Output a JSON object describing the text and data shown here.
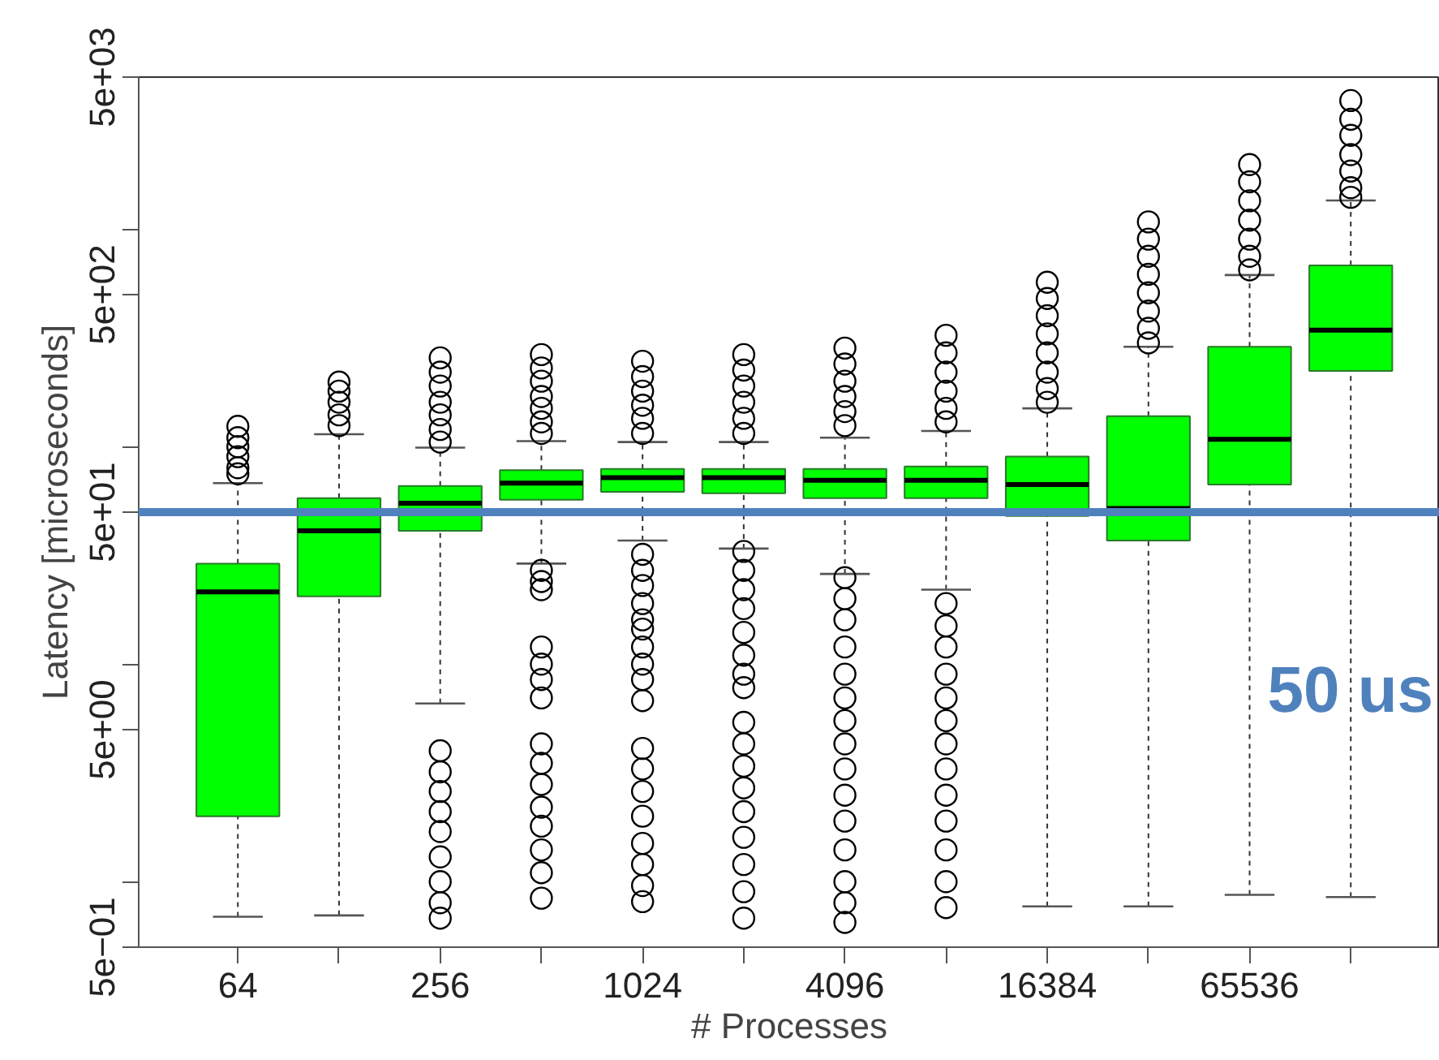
{
  "chart_data": {
    "type": "box",
    "xlabel": "# Processes",
    "ylabel": "Latency [microseconds]",
    "categories": [
      "64",
      null,
      "256",
      null,
      "1024",
      null,
      "4096",
      null,
      "16384",
      null,
      "65536",
      null
    ],
    "color": "#00ff00",
    "boxes": [
      {
        "low": 0.69,
        "q1": 2.0,
        "median": 21.5,
        "q3": 29,
        "high": 68,
        "outliers": [
          124,
          110,
          100,
          90,
          80,
          75
        ]
      },
      {
        "low": 0.7,
        "q1": 20.5,
        "median": 41,
        "q3": 58,
        "high": 114,
        "outliers": [
          198,
          180,
          160,
          140,
          125
        ]
      },
      {
        "low": 6.6,
        "q1": 41,
        "median": 55,
        "q3": 66,
        "high": 99,
        "outliers": [
          256,
          220,
          190,
          160,
          140,
          120,
          105,
          4.0,
          3.2,
          2.6,
          2.1,
          1.7,
          1.3,
          1.0,
          0.8,
          0.68
        ]
      },
      {
        "low": 29,
        "q1": 57,
        "median": 68,
        "q3": 78,
        "high": 106,
        "outliers": [
          265,
          230,
          200,
          170,
          150,
          130,
          115,
          27,
          24,
          22,
          12,
          10,
          8.5,
          7,
          4.3,
          3.5,
          2.8,
          2.2,
          1.8,
          1.4,
          1.1,
          0.84
        ]
      },
      {
        "low": 37,
        "q1": 62,
        "median": 72,
        "q3": 79,
        "high": 105,
        "outliers": [
          247,
          210,
          180,
          155,
          135,
          115,
          32,
          27,
          23,
          19,
          16,
          14.5,
          12,
          10,
          8.5,
          6.8,
          4.1,
          3.3,
          2.6,
          2.0,
          1.5,
          1.2,
          0.96,
          0.81
        ]
      },
      {
        "low": 34,
        "q1": 61,
        "median": 72,
        "q3": 79,
        "high": 105,
        "outliers": [
          265,
          225,
          190,
          160,
          135,
          115,
          33,
          27,
          22,
          18,
          14,
          11,
          9,
          7.8,
          5.4,
          4.3,
          3.4,
          2.7,
          2.1,
          1.6,
          1.2,
          0.9,
          0.68
        ]
      },
      {
        "low": 26,
        "q1": 58,
        "median": 70,
        "q3": 79,
        "high": 110,
        "outliers": [
          284,
          240,
          200,
          170,
          145,
          125,
          25,
          20,
          16,
          12,
          9,
          7,
          5.5,
          4.3,
          3.3,
          2.5,
          1.9,
          1.4,
          1.0,
          0.8,
          0.65
        ]
      },
      {
        "low": 22,
        "q1": 58,
        "median": 70,
        "q3": 81,
        "high": 118,
        "outliers": [
          325,
          270,
          220,
          180,
          150,
          130,
          19,
          15,
          12,
          9,
          7,
          5.5,
          4.3,
          3.3,
          2.5,
          1.9,
          1.4,
          1.0,
          0.76
        ]
      },
      {
        "low": 0.77,
        "q1": 48,
        "median": 67,
        "q3": 90,
        "high": 150,
        "outliers": [
          570,
          480,
          400,
          330,
          270,
          220,
          185,
          160
        ]
      },
      {
        "low": 0.77,
        "q1": 37,
        "median": 52,
        "q3": 138,
        "high": 288,
        "outliers": [
          1080,
          900,
          750,
          620,
          510,
          420,
          350,
          300
        ]
      },
      {
        "low": 0.87,
        "q1": 67,
        "median": 108,
        "q3": 288,
        "high": 615,
        "outliers": [
          1980,
          1650,
          1350,
          1100,
          900,
          750,
          650
        ]
      },
      {
        "low": 0.85,
        "q1": 223,
        "median": 343,
        "q3": 681,
        "high": 1355,
        "outliers": [
          3900,
          3200,
          2700,
          2200,
          1850,
          1550,
          1400
        ]
      }
    ],
    "log": true,
    "ylim": [
      0.5,
      5000
    ],
    "yticks": [
      {
        "value": 0.5,
        "label": "5e−01"
      },
      {
        "value": 1,
        "label": null
      },
      {
        "value": 5,
        "label": "5e+00"
      },
      {
        "value": 10,
        "label": null
      },
      {
        "value": 50,
        "label": "5e+01"
      },
      {
        "value": 100,
        "label": null
      },
      {
        "value": 500,
        "label": "5e+02"
      },
      {
        "value": 1000,
        "label": null
      },
      {
        "value": 5000,
        "label": "5e+03"
      }
    ],
    "ref_lines": [
      {
        "axis": "y",
        "value": 50,
        "label": "50 us",
        "color": "#4f81bd"
      }
    ]
  }
}
